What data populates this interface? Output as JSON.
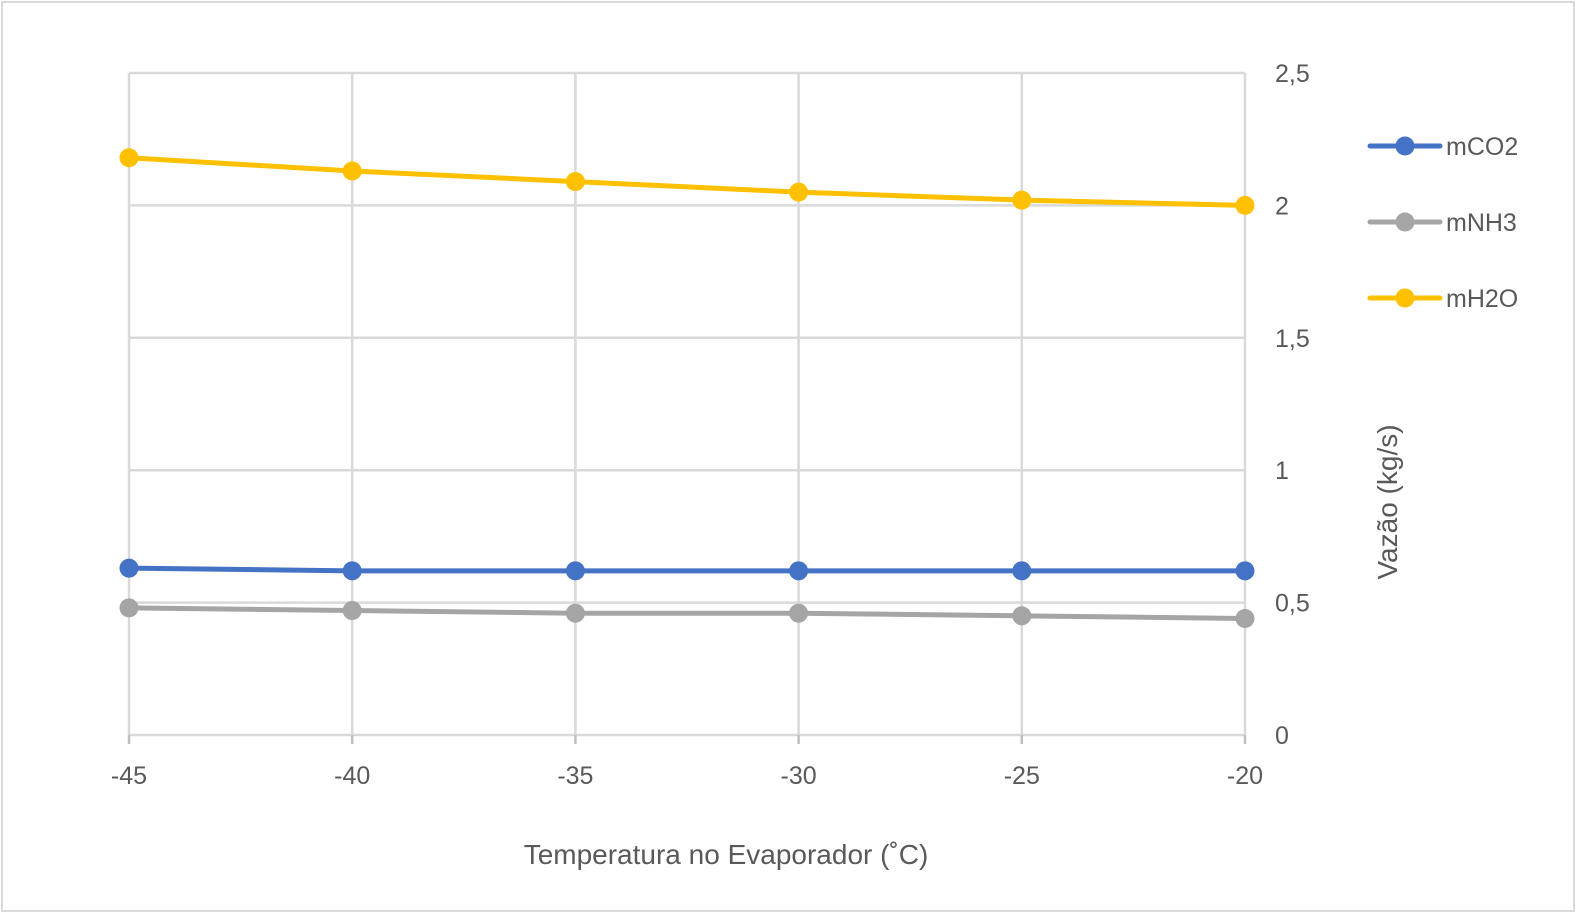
{
  "chart_data": {
    "type": "line",
    "title": "",
    "xlabel": "Temperatura no Evaporador (˚C)",
    "ylabel": "Vazão (kg/s)",
    "x": [
      -45,
      -40,
      -35,
      -30,
      -25,
      -20
    ],
    "x_tick_labels": [
      "-45",
      "-40",
      "-35",
      "-30",
      "-25",
      "-20"
    ],
    "xlim": [
      -45,
      -20
    ],
    "ylim": [
      0,
      2.5
    ],
    "y_ticks": [
      0,
      0.5,
      1,
      1.5,
      2,
      2.5
    ],
    "y_tick_labels": [
      "0",
      "0,5",
      "1",
      "1,5",
      "2",
      "2,5"
    ],
    "y_axis_side": "right",
    "grid": true,
    "legend_position": "right",
    "series": [
      {
        "name": "mCO2",
        "color": "#4472c4",
        "values": [
          0.63,
          0.62,
          0.62,
          0.62,
          0.62,
          0.62
        ]
      },
      {
        "name": "mNH3",
        "color": "#a5a5a5",
        "values": [
          0.48,
          0.47,
          0.46,
          0.46,
          0.45,
          0.44
        ]
      },
      {
        "name": "mH2O",
        "color": "#ffc000",
        "values": [
          2.18,
          2.13,
          2.09,
          2.05,
          2.02,
          2.0
        ]
      }
    ]
  }
}
